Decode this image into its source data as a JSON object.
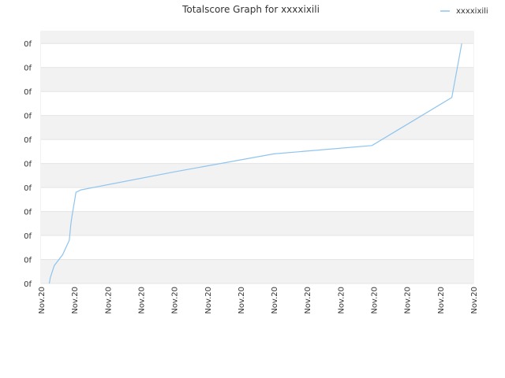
{
  "chart_data": {
    "type": "line",
    "title": "Totalscore Graph for xxxxixili",
    "xlabel": "",
    "ylabel": "",
    "legend": {
      "position": "top-right",
      "entries": [
        "xxxxixili"
      ]
    },
    "grid": true,
    "x_tick_labels": [
      "Nov.20",
      "Nov.20",
      "Nov.20",
      "Nov.20",
      "Nov.20",
      "Nov.20",
      "Nov.20",
      "Nov.20",
      "Nov.20",
      "Nov.20",
      "Nov.20",
      "Nov.20",
      "Nov.20",
      "Nov.20"
    ],
    "y_tick_labels": [
      "0f",
      "0f",
      "0f",
      "0f",
      "0f",
      "0f",
      "0f",
      "0f",
      "0f",
      "0f",
      "0f"
    ],
    "xlim": [
      0,
      13
    ],
    "ylim": [
      0,
      10.5
    ],
    "series": [
      {
        "name": "xxxxixili",
        "color": "#8ec4ee",
        "points": [
          [
            0.25,
            0.0
          ],
          [
            0.28,
            0.25
          ],
          [
            0.35,
            0.55
          ],
          [
            0.4,
            0.75
          ],
          [
            0.65,
            1.2
          ],
          [
            0.85,
            1.8
          ],
          [
            0.9,
            2.5
          ],
          [
            0.93,
            2.8
          ],
          [
            1.05,
            3.8
          ],
          [
            1.2,
            3.9
          ],
          [
            4.0,
            4.65
          ],
          [
            7.0,
            5.4
          ],
          [
            9.95,
            5.75
          ],
          [
            12.35,
            7.75
          ],
          [
            12.65,
            10.0
          ]
        ]
      }
    ]
  }
}
